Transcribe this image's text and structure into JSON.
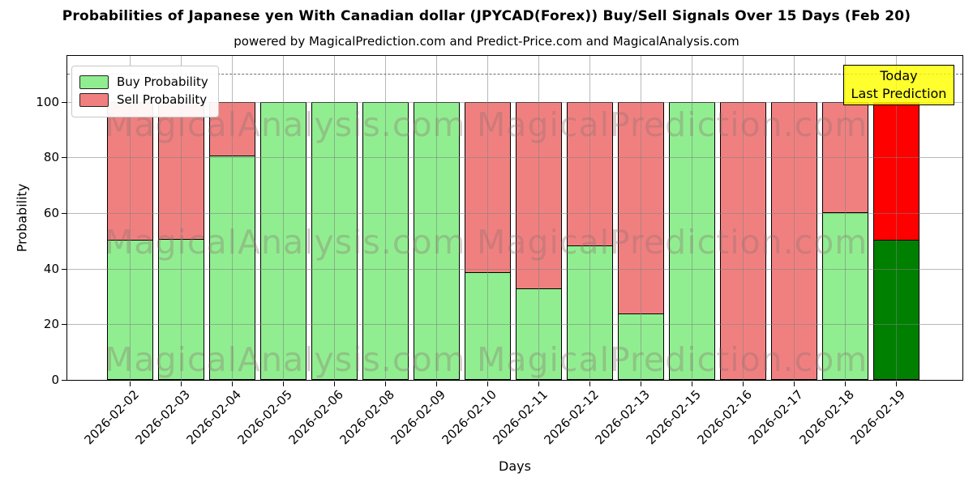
{
  "page": {
    "title": "Probabilities of Japanese yen With Canadian dollar (JPYCAD(Forex)) Buy/Sell Signals Over 15 Days (Feb 20)",
    "subtitle": "powered by MagicalPrediction.com and Predict-Price.com and MagicalAnalysis.com"
  },
  "legend": {
    "items": [
      {
        "label": "Buy Probability",
        "color": "#90ee90"
      },
      {
        "label": "Sell Probability",
        "color": "#f08080"
      }
    ]
  },
  "annotation_box": {
    "line1": "Today",
    "line2": "Last Prediction",
    "bg_color": "#ffff00"
  },
  "watermark": {
    "left_text": "MagicalAnalysis.com",
    "right_text": "MagicalPrediction.com",
    "rows": 3
  },
  "chart_data": {
    "type": "bar",
    "stacked": true,
    "title": "Probabilities of Japanese yen With Canadian dollar (JPYCAD(Forex)) Buy/Sell Signals Over 15 Days (Feb 20)",
    "subtitle": "powered by MagicalPrediction.com and Predict-Price.com and MagicalAnalysis.com",
    "xlabel": "Days",
    "ylabel": "Probability",
    "categories": [
      "2026-02-02",
      "2026-02-03",
      "2026-02-04",
      "2026-02-05",
      "2026-02-06",
      "2026-02-08",
      "2026-02-09",
      "2026-02-10",
      "2026-02-11",
      "2026-02-12",
      "2026-02-13",
      "2026-02-15",
      "2026-02-16",
      "2026-02-17",
      "2026-02-18",
      "2026-02-19"
    ],
    "series": [
      {
        "name": "Buy Probability",
        "color": "#90ee90",
        "values": [
          50.5,
          51,
          81,
          100,
          100,
          100,
          100,
          39,
          33,
          48.5,
          24,
          100,
          0,
          0,
          60.5,
          50.5
        ]
      },
      {
        "name": "Sell Probability",
        "color": "#f08080",
        "values": [
          49.5,
          49,
          19,
          0,
          0,
          0,
          0,
          61,
          67,
          51.5,
          76,
          0,
          100,
          100,
          39.5,
          49.5
        ]
      }
    ],
    "highlight_last_bar": {
      "buy_color": "#008000",
      "sell_color": "#ff0000"
    },
    "y_ticks": [
      0,
      20,
      40,
      60,
      80,
      100
    ],
    "ylim": [
      0,
      116.5
    ],
    "dashed_line_y": 110,
    "grid": true,
    "legend_position": "upper left"
  }
}
